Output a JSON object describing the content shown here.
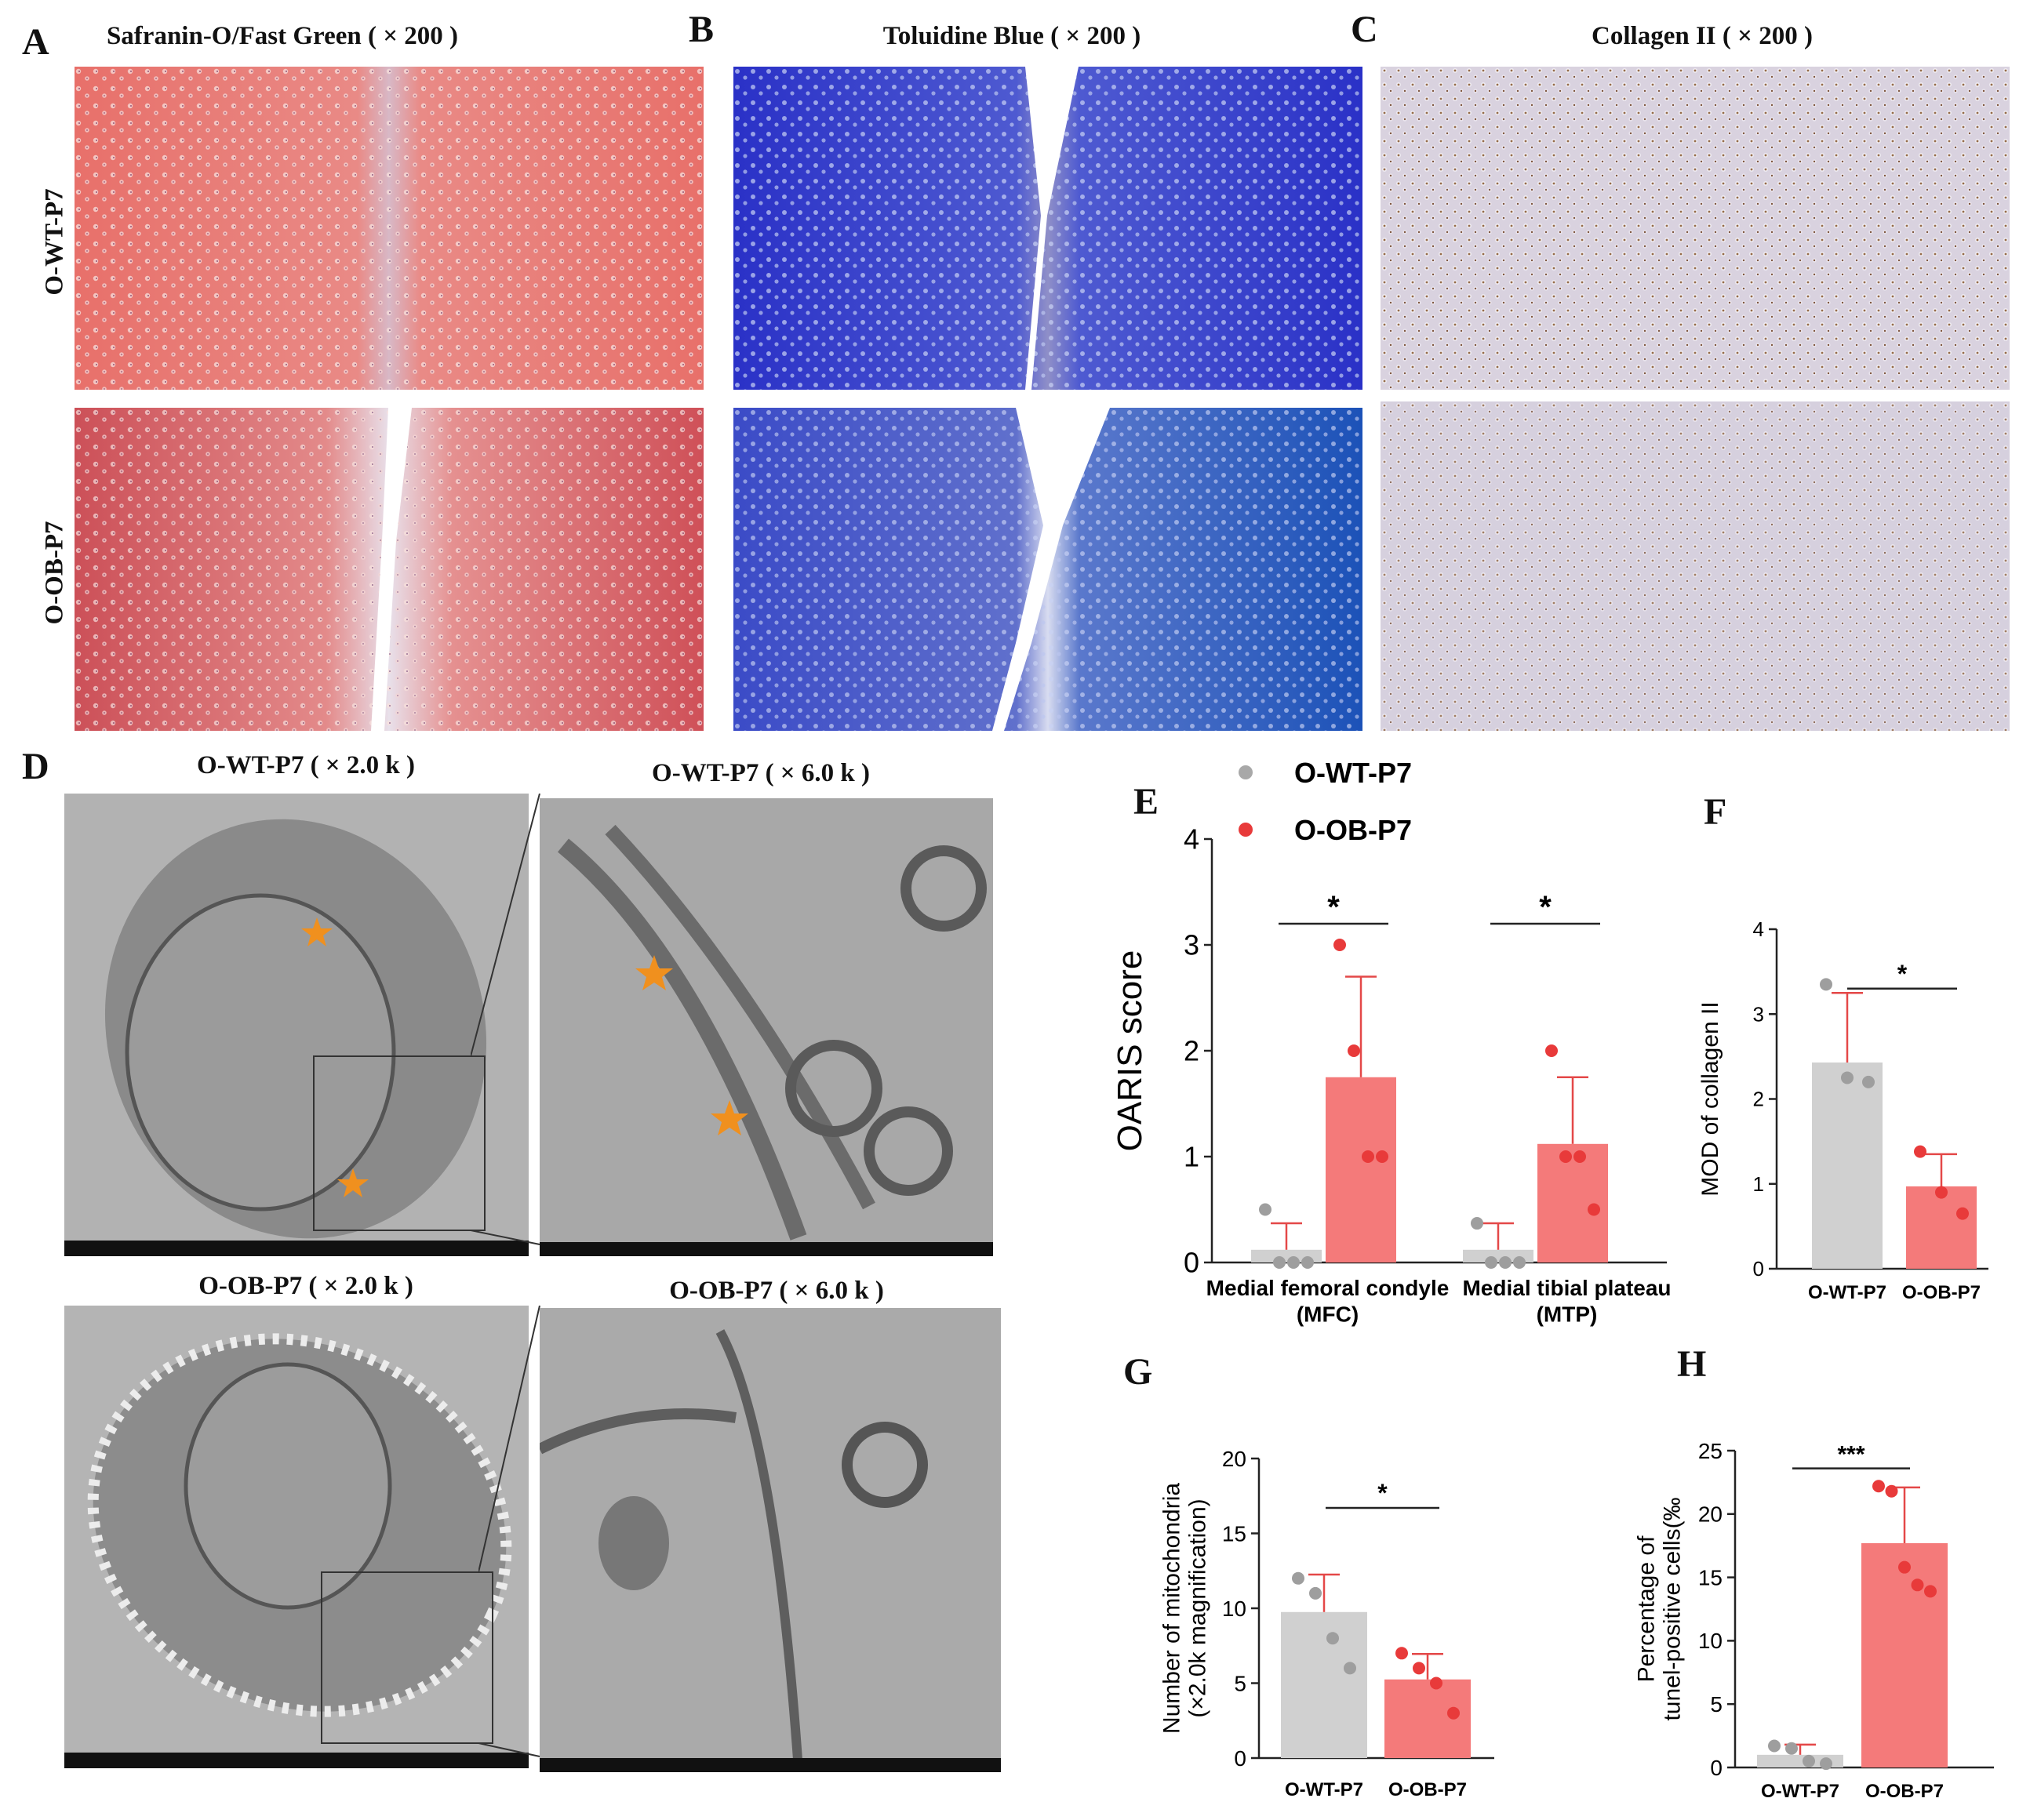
{
  "colors": {
    "wt": "#d0d0d0",
    "ob": "#f47a7a",
    "wt_point": "#9e9e9e",
    "ob_point": "#e83a3a",
    "error": "#e44848",
    "star": "#f0901e",
    "safranin": "#e8706a",
    "toluidine": "#2a31c7",
    "collagen": "#d9d2df",
    "tem": "#a8a8a8"
  },
  "panels": {
    "A": {
      "letter": "A",
      "title": "Safranin-O/Fast Green ( × 200 )"
    },
    "B": {
      "letter": "B",
      "title": "Toluidine Blue ( × 200 )"
    },
    "C": {
      "letter": "C",
      "title": "Collagen II ( × 200 )"
    },
    "D": {
      "letter": "D",
      "titles": [
        "O-WT-P7 ( × 2.0 k )",
        "O-WT-P7 ( × 6.0 k )",
        "O-OB-P7 ( × 2.0 k )",
        "O-OB-P7 ( × 6.0 k )"
      ]
    },
    "E": {
      "letter": "E"
    },
    "F": {
      "letter": "F"
    },
    "G": {
      "letter": "G"
    },
    "H": {
      "letter": "H"
    }
  },
  "row_labels": [
    "O-WT-P7",
    "O-OB-P7"
  ],
  "legend": {
    "wt": "O-WT-P7",
    "ob": "O-OB-P7"
  },
  "chart_data": [
    {
      "id": "E",
      "type": "bar",
      "ylabel": "OARIS score",
      "ylim": [
        0,
        4
      ],
      "yticks": [
        0,
        1,
        2,
        3,
        4
      ],
      "categories": [
        "Medial femoral condyle\n(MFC)",
        "Medial tibial plateau\n(MTP)"
      ],
      "series": [
        {
          "name": "O-WT-P7",
          "values": [
            0.12,
            0.12
          ],
          "sd": [
            0.25,
            0.25
          ],
          "points": [
            [
              0.5,
              0,
              0,
              0
            ],
            [
              0.37,
              0,
              0,
              0
            ]
          ]
        },
        {
          "name": "O-OB-P7",
          "values": [
            1.75,
            1.12
          ],
          "sd": [
            0.95,
            0.63
          ],
          "points": [
            [
              3,
              2,
              1,
              1
            ],
            [
              2,
              1,
              1,
              0.5
            ]
          ]
        }
      ],
      "significance": [
        "*",
        "*"
      ]
    },
    {
      "id": "F",
      "type": "bar",
      "ylabel": "MOD of collagen II",
      "ylim": [
        0,
        4
      ],
      "yticks": [
        0,
        1,
        2,
        3,
        4
      ],
      "categories": [
        "O-WT-P7",
        "O-OB-P7"
      ],
      "values": [
        2.43,
        0.97
      ],
      "sd": [
        0.82,
        0.38
      ],
      "points": [
        [
          3.35,
          2.25,
          2.2
        ],
        [
          1.38,
          0.9,
          0.65
        ]
      ],
      "significance": "*"
    },
    {
      "id": "G",
      "type": "bar",
      "ylabel": "Number of mitochondria\n(×2.0k magnification)",
      "ylim": [
        0,
        20
      ],
      "yticks": [
        0,
        5,
        10,
        15,
        20
      ],
      "categories": [
        "O-WT-P7",
        "O-OB-P7"
      ],
      "values": [
        9.75,
        5.25
      ],
      "sd": [
        2.5,
        1.7
      ],
      "points": [
        [
          12,
          11,
          8,
          6
        ],
        [
          7,
          6,
          5,
          3
        ]
      ],
      "significance": "*"
    },
    {
      "id": "H",
      "type": "bar",
      "ylabel": "Percentage of\ntunel-positive cells(‰",
      "ylim": [
        0,
        25
      ],
      "yticks": [
        0,
        5,
        10,
        15,
        20,
        25
      ],
      "categories": [
        "O-WT-P7",
        "O-OB-P7"
      ],
      "values": [
        1.0,
        17.7
      ],
      "sd": [
        0.8,
        4.4
      ],
      "points": [
        [
          1.7,
          1.5,
          0.5,
          0.3
        ],
        [
          22.2,
          21.8,
          15.8,
          14.4,
          13.9
        ]
      ],
      "significance": "***"
    }
  ]
}
